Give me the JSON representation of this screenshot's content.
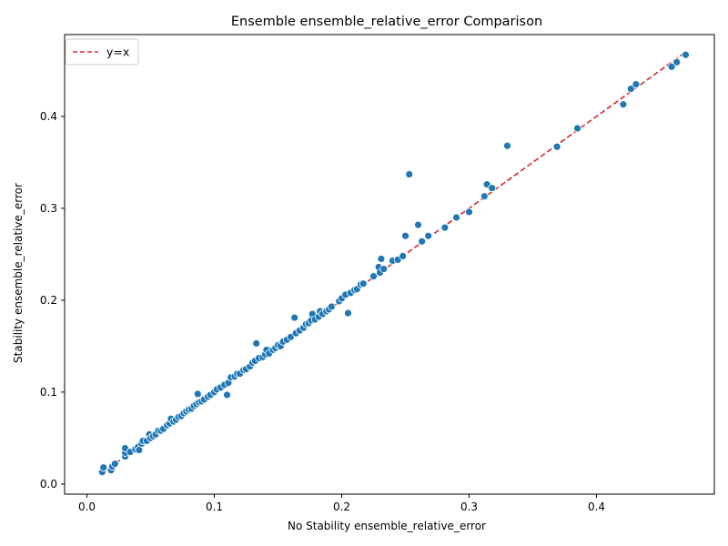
{
  "chart_data": {
    "type": "scatter",
    "title": "Ensemble ensemble_relative_error Comparison",
    "xlabel": "No Stability ensemble_relative_error",
    "ylabel": "Stability ensemble_relative_error",
    "xlim": [
      -0.0175,
      0.4925
    ],
    "ylim": [
      -0.011,
      0.489
    ],
    "xticks": [
      0.0,
      0.1,
      0.2,
      0.3,
      0.4
    ],
    "xtick_labels": [
      "0.0",
      "0.1",
      "0.2",
      "0.3",
      "0.4"
    ],
    "yticks": [
      0.0,
      0.1,
      0.2,
      0.3,
      0.4
    ],
    "ytick_labels": [
      "0.0",
      "0.1",
      "0.2",
      "0.3",
      "0.4"
    ],
    "grid": false,
    "legend": {
      "placement": "top-left",
      "entries": [
        {
          "label": "y=x",
          "style": "dashed",
          "color": "#d62728"
        }
      ]
    },
    "reference_line": {
      "label": "y=x",
      "from": 0.012,
      "to": 0.47,
      "color": "#d62728"
    },
    "point_color": "#1f77b4",
    "points": [
      [
        0.012,
        0.013
      ],
      [
        0.013,
        0.018
      ],
      [
        0.019,
        0.015
      ],
      [
        0.02,
        0.019
      ],
      [
        0.022,
        0.022
      ],
      [
        0.03,
        0.03
      ],
      [
        0.03,
        0.034
      ],
      [
        0.03,
        0.039
      ],
      [
        0.034,
        0.035
      ],
      [
        0.038,
        0.038
      ],
      [
        0.04,
        0.04
      ],
      [
        0.041,
        0.037
      ],
      [
        0.043,
        0.044
      ],
      [
        0.044,
        0.047
      ],
      [
        0.047,
        0.047
      ],
      [
        0.049,
        0.054
      ],
      [
        0.05,
        0.05
      ],
      [
        0.052,
        0.052
      ],
      [
        0.054,
        0.054
      ],
      [
        0.056,
        0.058
      ],
      [
        0.058,
        0.058
      ],
      [
        0.06,
        0.06
      ],
      [
        0.063,
        0.064
      ],
      [
        0.065,
        0.066
      ],
      [
        0.066,
        0.071
      ],
      [
        0.068,
        0.068
      ],
      [
        0.07,
        0.07
      ],
      [
        0.072,
        0.073
      ],
      [
        0.074,
        0.074
      ],
      [
        0.076,
        0.077
      ],
      [
        0.078,
        0.079
      ],
      [
        0.08,
        0.081
      ],
      [
        0.082,
        0.082
      ],
      [
        0.084,
        0.085
      ],
      [
        0.086,
        0.087
      ],
      [
        0.087,
        0.098
      ],
      [
        0.088,
        0.089
      ],
      [
        0.09,
        0.09
      ],
      [
        0.092,
        0.092
      ],
      [
        0.095,
        0.095
      ],
      [
        0.097,
        0.097
      ],
      [
        0.1,
        0.1
      ],
      [
        0.102,
        0.103
      ],
      [
        0.105,
        0.105
      ],
      [
        0.108,
        0.108
      ],
      [
        0.11,
        0.097
      ],
      [
        0.111,
        0.11
      ],
      [
        0.113,
        0.116
      ],
      [
        0.116,
        0.117
      ],
      [
        0.118,
        0.12
      ],
      [
        0.12,
        0.12
      ],
      [
        0.123,
        0.124
      ],
      [
        0.125,
        0.125
      ],
      [
        0.128,
        0.128
      ],
      [
        0.13,
        0.132
      ],
      [
        0.132,
        0.134
      ],
      [
        0.133,
        0.153
      ],
      [
        0.135,
        0.137
      ],
      [
        0.138,
        0.138
      ],
      [
        0.14,
        0.141
      ],
      [
        0.141,
        0.146
      ],
      [
        0.143,
        0.142
      ],
      [
        0.146,
        0.146
      ],
      [
        0.148,
        0.148
      ],
      [
        0.15,
        0.151
      ],
      [
        0.152,
        0.15
      ],
      [
        0.154,
        0.155
      ],
      [
        0.157,
        0.157
      ],
      [
        0.16,
        0.16
      ],
      [
        0.163,
        0.181
      ],
      [
        0.164,
        0.164
      ],
      [
        0.167,
        0.167
      ],
      [
        0.17,
        0.17
      ],
      [
        0.172,
        0.174
      ],
      [
        0.174,
        0.175
      ],
      [
        0.176,
        0.178
      ],
      [
        0.177,
        0.185
      ],
      [
        0.179,
        0.179
      ],
      [
        0.182,
        0.182
      ],
      [
        0.183,
        0.188
      ],
      [
        0.185,
        0.185
      ],
      [
        0.188,
        0.188
      ],
      [
        0.19,
        0.19
      ],
      [
        0.192,
        0.193
      ],
      [
        0.198,
        0.199
      ],
      [
        0.2,
        0.202
      ],
      [
        0.203,
        0.206
      ],
      [
        0.205,
        0.186
      ],
      [
        0.207,
        0.208
      ],
      [
        0.21,
        0.211
      ],
      [
        0.212,
        0.212
      ],
      [
        0.215,
        0.217
      ],
      [
        0.217,
        0.218
      ],
      [
        0.225,
        0.226
      ],
      [
        0.229,
        0.236
      ],
      [
        0.23,
        0.23
      ],
      [
        0.231,
        0.245
      ],
      [
        0.233,
        0.234
      ],
      [
        0.24,
        0.243
      ],
      [
        0.244,
        0.244
      ],
      [
        0.248,
        0.248
      ],
      [
        0.25,
        0.27
      ],
      [
        0.253,
        0.337
      ],
      [
        0.26,
        0.282
      ],
      [
        0.263,
        0.264
      ],
      [
        0.268,
        0.27
      ],
      [
        0.281,
        0.279
      ],
      [
        0.29,
        0.29
      ],
      [
        0.3,
        0.296
      ],
      [
        0.312,
        0.313
      ],
      [
        0.314,
        0.326
      ],
      [
        0.318,
        0.322
      ],
      [
        0.33,
        0.368
      ],
      [
        0.369,
        0.367
      ],
      [
        0.385,
        0.387
      ],
      [
        0.421,
        0.413
      ],
      [
        0.427,
        0.43
      ],
      [
        0.431,
        0.435
      ],
      [
        0.459,
        0.454
      ],
      [
        0.463,
        0.459
      ],
      [
        0.47,
        0.467
      ]
    ]
  }
}
